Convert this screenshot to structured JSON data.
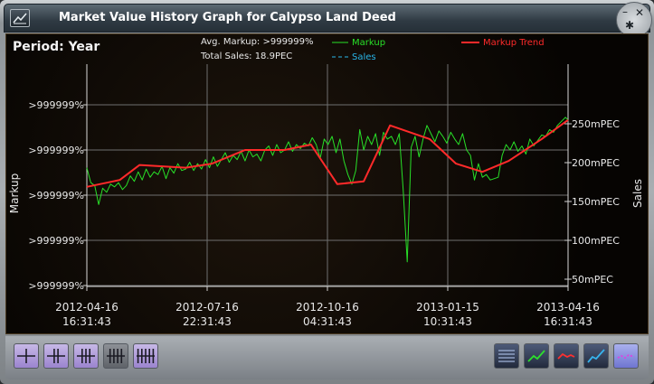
{
  "window": {
    "title": "Market Value History Graph for Calypso Land Deed"
  },
  "titlebar_controls": {
    "minimize_glyph": "–",
    "close_glyph": "✕",
    "pin_glyph": "✱"
  },
  "header": {
    "period_label": "Period: Year",
    "avg_markup_label": "Avg. Markup: >999999%",
    "total_sales_label": "Total Sales: 18.9PEC"
  },
  "legend": {
    "markup": "Markup",
    "markup_trend": "Markup Trend",
    "sales": "Sales"
  },
  "colors": {
    "markup": "#28e028",
    "markup_trend": "#ff2a2a",
    "sales": "#29b6e8",
    "grid": "#6f6f6f",
    "text": "#e8e8e8"
  },
  "chart_data": {
    "type": "line",
    "title": "",
    "ylabel_left": "Markup",
    "ylabel_right": "Sales",
    "left_tick_labels": [
      ">999999%",
      ">999999%",
      ">999999%",
      ">999999%",
      ">999999%"
    ],
    "right_tick_labels": [
      "250mPEC",
      "200mPEC",
      "150mPEC",
      "100mPEC",
      "50mPEC"
    ],
    "right_tick_values": [
      250,
      200,
      150,
      100,
      50
    ],
    "y2_range": [
      0,
      300
    ],
    "x_ticks": [
      {
        "date": "2012-04-16",
        "time": "16:31:43"
      },
      {
        "date": "2012-07-16",
        "time": "22:31:43"
      },
      {
        "date": "2012-10-16",
        "time": "04:31:43"
      },
      {
        "date": "2013-01-15",
        "time": "10:31:43"
      },
      {
        "date": "2013-04-16",
        "time": "16:31:43"
      }
    ],
    "x_range_days": [
      0,
      365
    ],
    "y_plot_range": [
      0,
      100
    ],
    "series": [
      {
        "name": "Markup",
        "x": [
          0,
          3,
          6,
          9,
          12,
          15,
          18,
          21,
          24,
          27,
          30,
          33,
          36,
          39,
          42,
          45,
          48,
          51,
          54,
          57,
          60,
          63,
          66,
          69,
          72,
          75,
          78,
          81,
          84,
          87,
          90,
          93,
          96,
          99,
          102,
          105,
          108,
          111,
          114,
          117,
          120,
          123,
          126,
          129,
          132,
          135,
          138,
          141,
          144,
          147,
          150,
          153,
          156,
          159,
          162,
          165,
          168,
          171,
          174,
          177,
          180,
          183,
          186,
          189,
          192,
          195,
          198,
          201,
          204,
          207,
          210,
          213,
          216,
          219,
          222,
          225,
          228,
          231,
          234,
          237,
          240,
          243,
          246,
          249,
          252,
          255,
          258,
          261,
          264,
          267,
          270,
          273,
          276,
          279,
          282,
          285,
          288,
          291,
          294,
          297,
          300,
          303,
          306,
          309,
          312,
          315,
          318,
          321,
          324,
          327,
          330,
          333,
          336,
          339,
          342,
          345,
          348,
          351,
          354,
          357,
          360,
          363,
          365
        ],
        "y": [
          87,
          76,
          74,
          60,
          72,
          69,
          75,
          73,
          76,
          71,
          74,
          81,
          77,
          84,
          78,
          86,
          80,
          84,
          82,
          88,
          79,
          87,
          83,
          90,
          85,
          86,
          91,
          85,
          90,
          86,
          93,
          87,
          95,
          88,
          93,
          98,
          91,
          96,
          93,
          99,
          92,
          100,
          95,
          97,
          92,
          100,
          103,
          96,
          104,
          98,
          100,
          106,
          99,
          104,
          101,
          105,
          103,
          109,
          104,
          94,
          108,
          104,
          110,
          98,
          108,
          92,
          82,
          75,
          85,
          115,
          100,
          110,
          104,
          112,
          96,
          113,
          108,
          110,
          104,
          112,
          70,
          18,
          102,
          110,
          95,
          108,
          118,
          112,
          106,
          114,
          110,
          105,
          113,
          108,
          104,
          112,
          100,
          96,
          78,
          90,
          80,
          82,
          78,
          79,
          80,
          96,
          104,
          100,
          106,
          99,
          103,
          97,
          108,
          103,
          107,
          111,
          110,
          115,
          113,
          118,
          121,
          124,
          122
        ]
      },
      {
        "name": "Markup Trend",
        "x": [
          0,
          25,
          40,
          75,
          95,
          120,
          150,
          170,
          190,
          210,
          230,
          260,
          280,
          300,
          320,
          345,
          365
        ],
        "y": [
          73,
          78,
          89,
          87,
          90,
          100,
          100,
          104,
          75,
          77,
          118,
          108,
          90,
          84,
          92,
          108,
          122
        ]
      },
      {
        "name": "Sales",
        "x": [],
        "y": []
      }
    ]
  },
  "toolbar": {
    "left_buttons": [
      {
        "name": "period-1-button",
        "icon": "one-division-icon",
        "active": true
      },
      {
        "name": "period-2-button",
        "icon": "two-division-icon",
        "active": true
      },
      {
        "name": "period-3-button",
        "icon": "three-division-icon",
        "active": true
      },
      {
        "name": "period-4-button",
        "icon": "four-division-icon",
        "active": false
      },
      {
        "name": "period-5-button",
        "icon": "five-division-icon",
        "active": true
      }
    ],
    "right_buttons": [
      {
        "name": "grid-toggle-button",
        "icon": "list-grid-icon"
      },
      {
        "name": "markup-toggle-button",
        "icon": "green-line-icon"
      },
      {
        "name": "trend-toggle-button",
        "icon": "red-line-icon"
      },
      {
        "name": "sales-toggle-button",
        "icon": "blue-line-icon"
      },
      {
        "name": "sales-dots-toggle-button",
        "icon": "dotted-line-icon"
      }
    ]
  }
}
